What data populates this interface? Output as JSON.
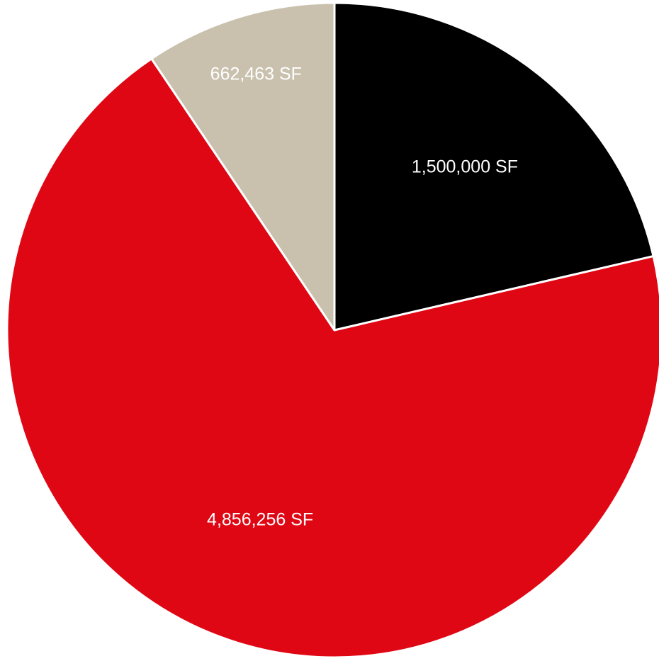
{
  "chart_data": {
    "type": "pie",
    "categories": [
      "",
      "",
      ""
    ],
    "values": [
      1500000,
      4856256,
      662463
    ],
    "labels": [
      "1,500,000 SF",
      "4,856,256 SF",
      "662,463 SF"
    ],
    "colors": [
      "#000000",
      "#e00714",
      "#c9c1ae"
    ],
    "start_angle_deg": 0,
    "direction": "clockwise",
    "legend": "none"
  }
}
